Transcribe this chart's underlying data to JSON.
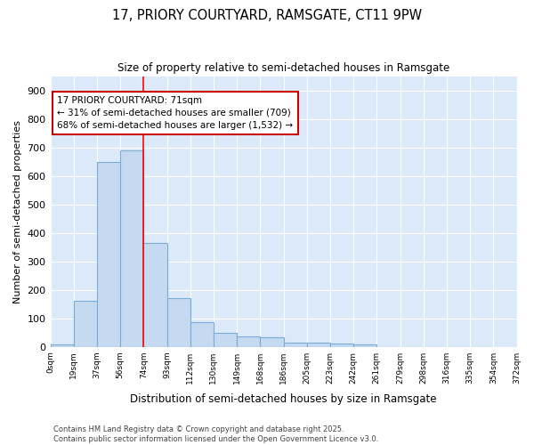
{
  "title1": "17, PRIORY COURTYARD, RAMSGATE, CT11 9PW",
  "title2": "Size of property relative to semi-detached houses in Ramsgate",
  "xlabel": "Distribution of semi-detached houses by size in Ramsgate",
  "ylabel": "Number of semi-detached properties",
  "bar_values": [
    8,
    160,
    650,
    690,
    365,
    170,
    85,
    48,
    37,
    32,
    15,
    13,
    11,
    7,
    0,
    0,
    0,
    0,
    0
  ],
  "bin_labels": [
    "0sqm",
    "19sqm",
    "37sqm",
    "56sqm",
    "74sqm",
    "93sqm",
    "112sqm",
    "130sqm",
    "149sqm",
    "168sqm",
    "186sqm",
    "205sqm",
    "223sqm",
    "242sqm",
    "261sqm",
    "279sqm",
    "298sqm",
    "316sqm",
    "335sqm",
    "354sqm",
    "372sqm"
  ],
  "bar_color": "#c5d9f0",
  "bar_edge_color": "#7aadd4",
  "plot_bg_color": "#dce9f8",
  "fig_bg_color": "#ffffff",
  "grid_color": "#ffffff",
  "red_line_x": 4,
  "annotation_text": "17 PRIORY COURTYARD: 71sqm\n← 31% of semi-detached houses are smaller (709)\n68% of semi-detached houses are larger (1,532) →",
  "annotation_box_color": "#ffffff",
  "annotation_box_edge": "#cc0000",
  "ylim": [
    0,
    950
  ],
  "yticks": [
    0,
    100,
    200,
    300,
    400,
    500,
    600,
    700,
    800,
    900
  ],
  "footer1": "Contains HM Land Registry data © Crown copyright and database right 2025.",
  "footer2": "Contains public sector information licensed under the Open Government Licence v3.0."
}
